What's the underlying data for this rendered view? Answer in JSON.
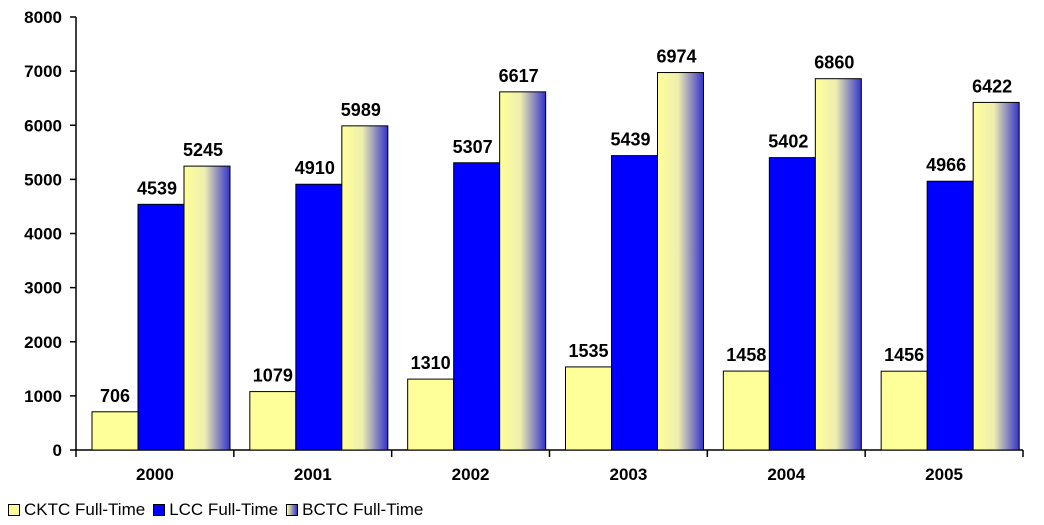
{
  "chart_data": {
    "type": "bar",
    "categories": [
      "2000",
      "2001",
      "2002",
      "2003",
      "2004",
      "2005"
    ],
    "series": [
      {
        "name": "CKTC Full-Time",
        "values": [
          706,
          1079,
          1310,
          1535,
          1458,
          1456
        ],
        "color": "#ffff99"
      },
      {
        "name": "LCC Full-Time",
        "values": [
          4539,
          4910,
          5307,
          5439,
          5402,
          4966
        ],
        "color": "#0000ff"
      },
      {
        "name": "BCTC Full-Time",
        "values": [
          5245,
          5989,
          6617,
          6974,
          6860,
          6422
        ],
        "color_gradient": [
          "#ffff99",
          "#3333cc"
        ]
      }
    ],
    "yticks": [
      "0",
      "1000",
      "2000",
      "3000",
      "4000",
      "5000",
      "6000",
      "7000",
      "8000"
    ],
    "ylim": [
      0,
      8000
    ],
    "title": "",
    "xlabel": "",
    "ylabel": "",
    "grid": false,
    "legend_position": "bottom-left"
  }
}
